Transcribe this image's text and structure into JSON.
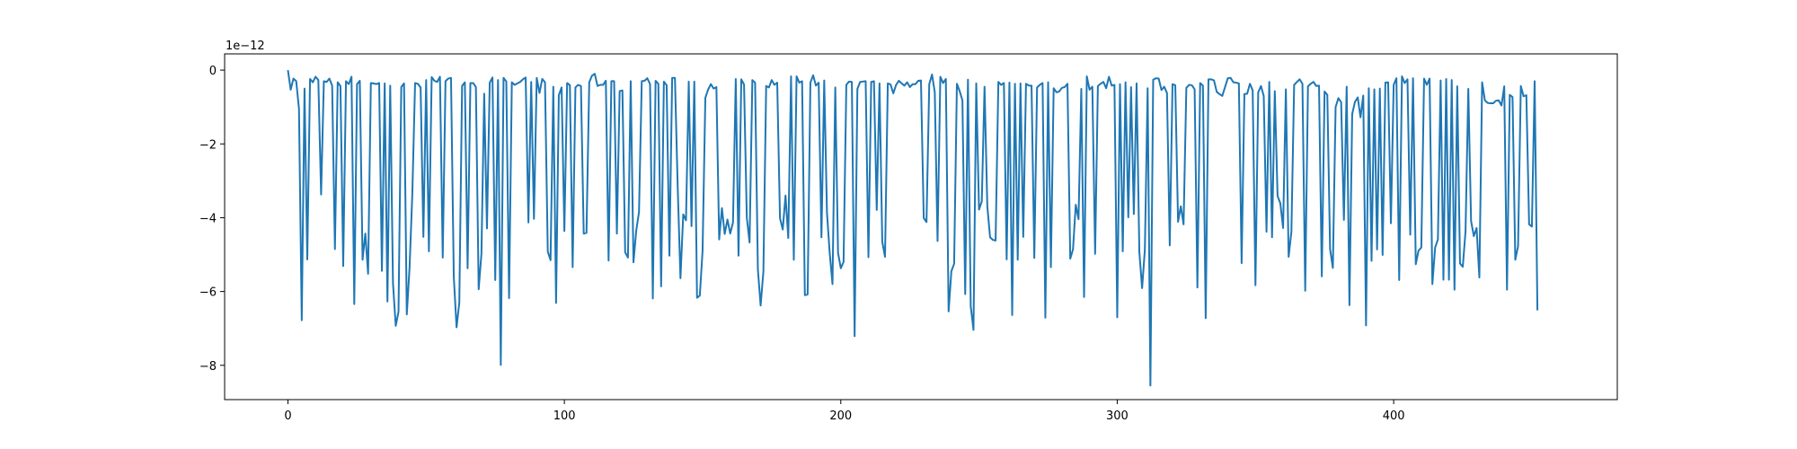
{
  "chart_data": {
    "type": "line",
    "title": "",
    "xlabel": "",
    "ylabel": "",
    "y_offset_label": "1e−12",
    "xlim": [
      -22.9,
      480.9
    ],
    "ylim": [
      -8.93,
      0.44
    ],
    "xticks": [
      0,
      100,
      200,
      300,
      400
    ],
    "xtick_labels": [
      "0",
      "100",
      "200",
      "300",
      "400"
    ],
    "yticks": [
      0,
      -2,
      -4,
      -6,
      -8
    ],
    "ytick_labels": [
      "0",
      "−2",
      "−4",
      "−6",
      "−8"
    ],
    "grid": false,
    "legend": "none",
    "color": "#1f77b4",
    "series": [
      {
        "values": [
          0.0,
          -0.53,
          -0.23,
          -0.3,
          -1.05,
          -6.78,
          -0.5,
          -5.13,
          -0.24,
          -0.33,
          -0.18,
          -0.27,
          -3.37,
          -0.3,
          -0.32,
          -0.23,
          -0.42,
          -4.85,
          -0.33,
          -0.43,
          -5.31,
          -0.3,
          -0.38,
          -0.18,
          -6.34,
          -0.38,
          -0.29,
          -5.14,
          -4.43,
          -5.52,
          -0.35,
          -0.36,
          -0.38,
          -0.35,
          -5.44,
          -0.36,
          -6.27,
          -0.42,
          -5.77,
          -6.93,
          -6.55,
          -0.46,
          -0.36,
          -6.62,
          -5.35,
          -3.35,
          -0.35,
          -0.37,
          -0.47,
          -4.52,
          -0.27,
          -4.91,
          -0.19,
          -0.29,
          -0.32,
          -0.18,
          -5.08,
          -0.3,
          -0.23,
          -0.21,
          -5.6,
          -6.97,
          -6.3,
          -0.43,
          -0.33,
          -5.37,
          -0.35,
          -0.35,
          -0.46,
          -5.94,
          -4.98,
          -0.64,
          -4.29,
          -0.34,
          -0.2,
          -5.69,
          -0.27,
          -7.99,
          -0.21,
          -0.31,
          -6.18,
          -0.33,
          -0.4,
          -0.36,
          -0.32,
          -0.25,
          -0.2,
          -4.13,
          -0.32,
          -4.03,
          -0.21,
          -0.62,
          -0.24,
          -0.33,
          -4.92,
          -5.15,
          -0.45,
          -6.31,
          -0.68,
          -0.47,
          -4.36,
          -0.35,
          -0.41,
          -5.34,
          -0.47,
          -0.4,
          -0.43,
          -4.43,
          -4.41,
          -0.33,
          -0.15,
          -0.1,
          -0.43,
          -0.4,
          -0.4,
          -0.29,
          -5.16,
          -0.3,
          -0.3,
          -4.43,
          -0.57,
          -0.55,
          -4.94,
          -5.08,
          -0.3,
          -5.21,
          -4.35,
          -3.85,
          -0.3,
          -0.29,
          -0.22,
          -0.38,
          -6.19,
          -0.29,
          -0.37,
          -5.86,
          -0.31,
          -0.41,
          -5.03,
          -0.21,
          -0.21,
          -3.17,
          -5.64,
          -3.91,
          -4.07,
          -0.31,
          -4.23,
          -0.31,
          -6.17,
          -6.11,
          -4.89,
          -0.75,
          -0.53,
          -0.38,
          -0.5,
          -0.46,
          -4.59,
          -3.74,
          -4.44,
          -4.05,
          -4.43,
          -4.13,
          -0.24,
          -5.03,
          -0.25,
          -0.39,
          -4.0,
          -4.67,
          -0.27,
          -0.34,
          -5.4,
          -6.38,
          -5.46,
          -0.43,
          -0.47,
          -0.27,
          -0.4,
          -0.34,
          -4.01,
          -4.32,
          -3.4,
          -4.55,
          -0.17,
          -5.14,
          -0.17,
          -0.34,
          -0.3,
          -6.1,
          -6.08,
          -0.34,
          -0.14,
          -0.42,
          -0.34,
          -4.53,
          -0.28,
          -3.87,
          -4.97,
          -5.8,
          -0.47,
          -4.95,
          -5.37,
          -5.2,
          -0.4,
          -0.31,
          -0.32,
          -7.21,
          -0.51,
          -0.32,
          -0.31,
          -0.3,
          -5.07,
          -0.32,
          -0.3,
          -3.79,
          -0.36,
          -4.65,
          -5.06,
          -0.36,
          -0.39,
          -0.63,
          -0.4,
          -0.29,
          -0.36,
          -0.42,
          -0.33,
          -0.46,
          -0.38,
          -0.38,
          -0.29,
          -0.28,
          -4.01,
          -4.12,
          -0.38,
          -0.12,
          -0.6,
          -4.63,
          -0.18,
          -0.35,
          -0.24,
          -6.54,
          -5.45,
          -5.25,
          -0.37,
          -0.57,
          -0.82,
          -6.07,
          -0.26,
          -6.4,
          -7.04,
          -0.36,
          -3.78,
          -3.56,
          -0.45,
          -3.69,
          -4.53,
          -4.6,
          -4.62,
          -0.32,
          -0.4,
          -0.35,
          -5.13,
          -0.34,
          -6.64,
          -0.37,
          -5.14,
          -0.36,
          -4.52,
          -0.37,
          -0.42,
          -0.42,
          -5.09,
          -0.47,
          -0.4,
          -0.35,
          -6.71,
          -0.33,
          -5.34,
          -0.49,
          -0.6,
          -0.58,
          -0.48,
          -0.46,
          -0.37,
          -5.11,
          -4.86,
          -3.65,
          -4.04,
          -0.51,
          -6.15,
          -0.17,
          -0.53,
          -0.45,
          -4.98,
          -0.43,
          -0.37,
          -0.32,
          -0.49,
          -0.18,
          -0.42,
          -0.4,
          -6.7,
          -0.38,
          -4.91,
          -0.33,
          -3.99,
          -0.46,
          -3.9,
          -0.36,
          -4.93,
          -5.91,
          -4.86,
          -0.49,
          -8.55,
          -0.26,
          -0.22,
          -0.23,
          -0.54,
          -0.45,
          -0.62,
          -4.75,
          -0.38,
          -0.41,
          -4.11,
          -3.69,
          -4.18,
          -0.48,
          -0.4,
          -0.41,
          -0.52,
          -5.89,
          -0.35,
          -0.42,
          -6.72,
          -0.25,
          -0.25,
          -0.28,
          -0.59,
          -0.65,
          -0.7,
          -0.46,
          -0.22,
          -0.21,
          -0.33,
          -0.34,
          -0.36,
          -5.23,
          -0.65,
          -0.64,
          -0.37,
          -0.55,
          -5.83,
          -0.6,
          -0.43,
          -0.7,
          -4.38,
          -0.32,
          -4.53,
          -0.57,
          -3.41,
          -3.61,
          -4.28,
          -0.52,
          -5.06,
          -4.39,
          -0.4,
          -0.32,
          -0.25,
          -0.37,
          -5.98,
          -0.44,
          -0.37,
          -0.32,
          -0.43,
          -0.42,
          -5.59,
          -0.58,
          -0.67,
          -4.85,
          -5.36,
          -1.0,
          -0.76,
          -0.87,
          -4.06,
          -0.45,
          -6.37,
          -1.19,
          -0.86,
          -0.74,
          -1.28,
          -0.69,
          -6.92,
          -0.49,
          -5.17,
          -0.52,
          -4.86,
          -0.5,
          -5.01,
          -0.34,
          -0.33,
          -4.15,
          -0.4,
          -0.22,
          -5.69,
          -0.17,
          -0.35,
          -0.25,
          -4.46,
          -0.22,
          -5.26,
          -4.89,
          -4.81,
          -0.23,
          -0.4,
          -0.23,
          -5.8,
          -4.81,
          -4.59,
          -0.28,
          -5.68,
          -0.24,
          -5.68,
          -0.27,
          -5.95,
          -0.44,
          -5.24,
          -5.33,
          -4.37,
          -0.51,
          -4.09,
          -4.5,
          -4.28,
          -5.62,
          -0.33,
          -0.82,
          -0.89,
          -0.9,
          -0.9,
          -0.83,
          -0.82,
          -0.96,
          -0.44,
          -5.95,
          -0.67,
          -0.73,
          -5.14,
          -4.77,
          -0.43,
          -0.71,
          -0.68,
          -4.18,
          -4.24,
          -0.3,
          -6.51
        ]
      }
    ]
  }
}
